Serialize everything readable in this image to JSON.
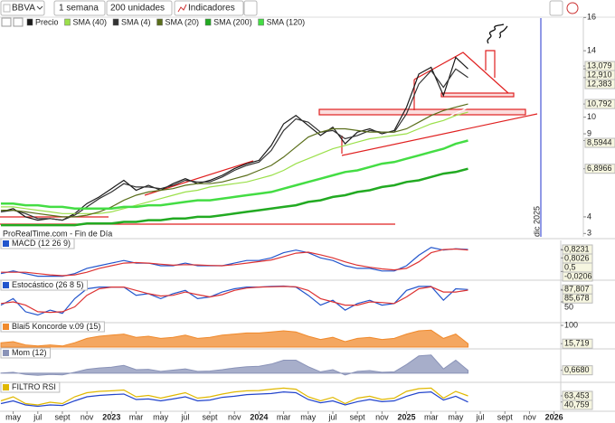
{
  "toolbar": {
    "symbol": "BBVA",
    "period": "1 semana",
    "units": "200 unidades",
    "indicators": "Indicadores"
  },
  "chart_data": [
    {
      "type": "line",
      "source": "ProRealTime.com - Fin de Día",
      "annotation": "dic 2025",
      "x": [
        "2022-04",
        "2022-05",
        "2022-06",
        "2022-07",
        "2022-08",
        "2022-09",
        "2022-10",
        "2022-11",
        "2022-12",
        "2023-01",
        "2023-02",
        "2023-03",
        "2023-04",
        "2023-05",
        "2023-06",
        "2023-07",
        "2023-08",
        "2023-09",
        "2023-10",
        "2023-11",
        "2023-12",
        "2024-01",
        "2024-02",
        "2024-03",
        "2024-04",
        "2024-05",
        "2024-06",
        "2024-07",
        "2024-08",
        "2024-09",
        "2024-10",
        "2024-11",
        "2024-12",
        "2025-01",
        "2025-02",
        "2025-03",
        "2025-04",
        "2025-05",
        "2025-06"
      ],
      "xlim": [
        "2022-04",
        "2026-05"
      ],
      "xticks": [
        {
          "value": "2022-05",
          "label": "may"
        },
        {
          "value": "2022-07",
          "label": "jul"
        },
        {
          "value": "2022-09",
          "label": "sept"
        },
        {
          "value": "2022-11",
          "label": "nov"
        },
        {
          "value": "2023-01",
          "label": "2023"
        },
        {
          "value": "2023-03",
          "label": "mar"
        },
        {
          "value": "2023-05",
          "label": "may"
        },
        {
          "value": "2023-07",
          "label": "jul"
        },
        {
          "value": "2023-09",
          "label": "sept"
        },
        {
          "value": "2023-11",
          "label": "nov"
        },
        {
          "value": "2024-01",
          "label": "2024"
        },
        {
          "value": "2024-03",
          "label": "mar"
        },
        {
          "value": "2024-05",
          "label": "may"
        },
        {
          "value": "2024-07",
          "label": "jul"
        },
        {
          "value": "2024-09",
          "label": "sept"
        },
        {
          "value": "2024-11",
          "label": "nov"
        },
        {
          "value": "2025-01",
          "label": "2025"
        },
        {
          "value": "2025-03",
          "label": "mar"
        },
        {
          "value": "2025-05",
          "label": "may"
        },
        {
          "value": "2025-07",
          "label": "jul"
        },
        {
          "value": "2025-09",
          "label": "sept"
        },
        {
          "value": "2025-11",
          "label": "nov"
        },
        {
          "value": "2026-01",
          "label": "2026"
        }
      ],
      "ylim": [
        2.8,
        16.4
      ],
      "yticks": [
        16,
        14,
        {
          "value": 13.079,
          "label": "13,079"
        },
        {
          "value": 12.91,
          "label": "12,910"
        },
        {
          "value": 12.383,
          "label": "12,383"
        },
        {
          "value": 10.792,
          "label": "10,792"
        },
        10,
        9,
        {
          "value": 8.5944,
          "label": "8,5944"
        },
        {
          "value": 6.8966,
          "label": "6,8966"
        },
        4,
        3
      ],
      "series": [
        {
          "name": "Precio",
          "color": "#1a1a1a",
          "values": [
            4.3,
            4.5,
            4.0,
            3.8,
            3.9,
            3.8,
            4.2,
            4.8,
            5.2,
            5.7,
            6.2,
            5.6,
            5.9,
            5.6,
            6.0,
            6.3,
            6.0,
            6.2,
            6.5,
            6.9,
            7.2,
            7.4,
            8.3,
            9.6,
            10.1,
            9.5,
            8.9,
            9.4,
            8.4,
            9.1,
            9.3,
            9.0,
            9.2,
            10.6,
            12.6,
            13.0,
            11.3,
            13.6,
            12.91
          ]
        },
        {
          "name": "SMA (40)",
          "color": "#9be04a",
          "values": [
            4.6,
            4.6,
            4.5,
            4.4,
            4.3,
            4.2,
            4.2,
            4.2,
            4.2,
            4.3,
            4.5,
            4.7,
            4.9,
            5.1,
            5.3,
            5.5,
            5.6,
            5.8,
            5.9,
            6.0,
            6.1,
            6.3,
            6.5,
            6.8,
            7.2,
            7.5,
            7.8,
            8.1,
            8.3,
            8.5,
            8.7,
            8.8,
            8.9,
            9.0,
            9.3,
            9.6,
            9.8,
            10.1,
            10.3
          ]
        },
        {
          "name": "SMA (4)",
          "color": "#333333",
          "values": [
            4.3,
            4.4,
            4.2,
            3.9,
            3.9,
            3.8,
            4.1,
            4.6,
            5.1,
            5.5,
            6.0,
            5.8,
            5.8,
            5.7,
            5.9,
            6.2,
            6.1,
            6.1,
            6.4,
            6.8,
            7.1,
            7.3,
            8.0,
            9.2,
            9.9,
            9.7,
            9.1,
            9.2,
            8.7,
            8.9,
            9.2,
            9.1,
            9.1,
            10.2,
            12.0,
            12.8,
            11.8,
            12.9,
            12.383
          ]
        },
        {
          "name": "SMA (20)",
          "color": "#5a6e1a",
          "values": [
            4.4,
            4.4,
            4.3,
            4.2,
            4.1,
            4.0,
            4.0,
            4.1,
            4.3,
            4.6,
            5.0,
            5.3,
            5.5,
            5.6,
            5.7,
            5.9,
            6.0,
            6.0,
            6.1,
            6.3,
            6.5,
            6.8,
            7.1,
            7.6,
            8.2,
            8.8,
            9.1,
            9.3,
            9.3,
            9.2,
            9.1,
            9.1,
            9.1,
            9.3,
            9.7,
            10.1,
            10.4,
            10.6,
            10.792
          ]
        },
        {
          "name": "SMA (200)",
          "color": "#22aa22",
          "values": [
            3.5,
            3.5,
            3.5,
            3.5,
            3.5,
            3.5,
            3.5,
            3.6,
            3.6,
            3.6,
            3.7,
            3.7,
            3.8,
            3.8,
            3.9,
            3.9,
            4.0,
            4.0,
            4.1,
            4.2,
            4.3,
            4.4,
            4.5,
            4.6,
            4.7,
            4.9,
            5.0,
            5.2,
            5.3,
            5.5,
            5.6,
            5.8,
            5.9,
            6.1,
            6.2,
            6.4,
            6.6,
            6.7,
            6.8966
          ]
        },
        {
          "name": "SMA (120)",
          "color": "#44dd44",
          "values": [
            4.8,
            4.8,
            4.7,
            4.7,
            4.6,
            4.6,
            4.5,
            4.5,
            4.5,
            4.5,
            4.6,
            4.6,
            4.7,
            4.7,
            4.8,
            4.9,
            5.0,
            5.0,
            5.1,
            5.2,
            5.3,
            5.4,
            5.5,
            5.7,
            5.9,
            6.1,
            6.3,
            6.5,
            6.7,
            6.8,
            7.0,
            7.2,
            7.3,
            7.5,
            7.7,
            7.9,
            8.1,
            8.4,
            8.5944
          ]
        }
      ]
    },
    {
      "type": "line",
      "title": "MACD (12 26 9)",
      "ylim": [
        -0.25,
        1.1
      ],
      "yticks": [
        {
          "value": 0.8231,
          "label": "0,8231"
        },
        {
          "value": 0.8026,
          "label": "0,8026"
        },
        {
          "value": 0.5,
          "label": "0,5"
        },
        {
          "value": -0.0206,
          "label": "-0,0206"
        }
      ],
      "series": [
        {
          "color": "#2255cc",
          "values": [
            -0.1,
            0,
            -0.1,
            -0.2,
            -0.2,
            -0.2,
            -0.1,
            0.1,
            0.2,
            0.3,
            0.4,
            0.3,
            0.3,
            0.2,
            0.2,
            0.3,
            0.2,
            0.2,
            0.2,
            0.3,
            0.4,
            0.4,
            0.5,
            0.7,
            0.8,
            0.7,
            0.5,
            0.4,
            0.2,
            0.1,
            0.1,
            0.0,
            0.0,
            0.2,
            0.6,
            0.9,
            0.8,
            0.85,
            0.8231
          ]
        },
        {
          "color": "#dd3333",
          "values": [
            -0.05,
            -0.05,
            -0.05,
            -0.1,
            -0.15,
            -0.18,
            -0.15,
            -0.05,
            0.1,
            0.2,
            0.3,
            0.32,
            0.3,
            0.26,
            0.22,
            0.24,
            0.23,
            0.21,
            0.2,
            0.24,
            0.3,
            0.36,
            0.42,
            0.55,
            0.68,
            0.72,
            0.62,
            0.5,
            0.35,
            0.22,
            0.14,
            0.08,
            0.04,
            0.1,
            0.35,
            0.7,
            0.82,
            0.84,
            0.8026
          ]
        }
      ]
    },
    {
      "type": "line",
      "title": "Estocástico (26 8 5)",
      "ylim": [
        -5,
        105
      ],
      "yticks": [
        {
          "value": 87.807,
          "label": "87,807"
        },
        {
          "value": 85.678,
          "label": "85,678"
        },
        50
      ],
      "series": [
        {
          "color": "#2255cc",
          "values": [
            40,
            60,
            20,
            10,
            25,
            15,
            60,
            90,
            95,
            95,
            95,
            70,
            75,
            60,
            75,
            85,
            60,
            65,
            80,
            90,
            95,
            95,
            97,
            98,
            95,
            70,
            40,
            55,
            25,
            45,
            55,
            40,
            45,
            85,
            97,
            97,
            55,
            90,
            87.807
          ]
        },
        {
          "color": "#dd3333",
          "values": [
            45,
            50,
            40,
            20,
            18,
            20,
            35,
            70,
            90,
            95,
            95,
            85,
            75,
            68,
            70,
            80,
            72,
            65,
            72,
            85,
            92,
            95,
            96,
            97,
            96,
            85,
            60,
            50,
            40,
            40,
            50,
            48,
            45,
            65,
            90,
            96,
            80,
            80,
            85.678
          ]
        }
      ]
    },
    {
      "type": "area",
      "title": "Blai5 Koncorde v.09 (15)",
      "ylim": [
        0,
        100
      ],
      "yticks": [
        100,
        {
          "value": 15.719,
          "label": "15,719"
        }
      ],
      "series": [
        {
          "color": "#f08a2c",
          "values": [
            20,
            25,
            10,
            5,
            10,
            5,
            20,
            40,
            50,
            55,
            60,
            45,
            50,
            40,
            45,
            55,
            40,
            45,
            55,
            60,
            65,
            65,
            70,
            75,
            70,
            50,
            35,
            45,
            25,
            40,
            45,
            35,
            40,
            60,
            75,
            78,
            40,
            60,
            15.719
          ]
        }
      ]
    },
    {
      "type": "area",
      "title": "Mom (12)",
      "ylim": [
        -1.5,
        5
      ],
      "yticks": [
        {
          "value": 0.668,
          "label": "0,6680"
        }
      ],
      "series": [
        {
          "color": "#8a93b8",
          "values": [
            0,
            0.2,
            -0.3,
            -0.5,
            -0.3,
            -0.4,
            0.2,
            0.9,
            1.2,
            1.4,
            1.8,
            0.8,
            0.9,
            0.4,
            0.7,
            1.0,
            0.4,
            0.5,
            0.8,
            1.2,
            1.5,
            1.6,
            2.1,
            3.0,
            3.0,
            1.5,
            0.3,
            0.8,
            -0.4,
            0.4,
            0.6,
            0.2,
            0.3,
            2.0,
            4.0,
            4.2,
            1.0,
            3.0,
            0.668
          ]
        }
      ]
    },
    {
      "type": "line",
      "title": "FILTRO RSI",
      "ylim": [
        10,
        100
      ],
      "yticks": [
        {
          "value": 63.453,
          "label": "63,453"
        },
        {
          "value": 40.759,
          "label": "40,759"
        }
      ],
      "series": [
        {
          "color": "#e0b800",
          "values": [
            45,
            60,
            35,
            30,
            40,
            35,
            60,
            75,
            80,
            82,
            85,
            60,
            65,
            55,
            65,
            75,
            55,
            60,
            70,
            78,
            82,
            83,
            88,
            92,
            88,
            60,
            45,
            58,
            35,
            55,
            62,
            50,
            55,
            80,
            90,
            92,
            55,
            80,
            63.453
          ]
        },
        {
          "color": "#2244cc",
          "values": [
            35,
            45,
            30,
            25,
            30,
            28,
            45,
            60,
            65,
            68,
            70,
            50,
            52,
            45,
            52,
            60,
            45,
            48,
            58,
            62,
            68,
            70,
            72,
            78,
            75,
            50,
            38,
            45,
            30,
            42,
            50,
            42,
            45,
            62,
            75,
            78,
            48,
            62,
            40.759
          ]
        }
      ]
    }
  ]
}
